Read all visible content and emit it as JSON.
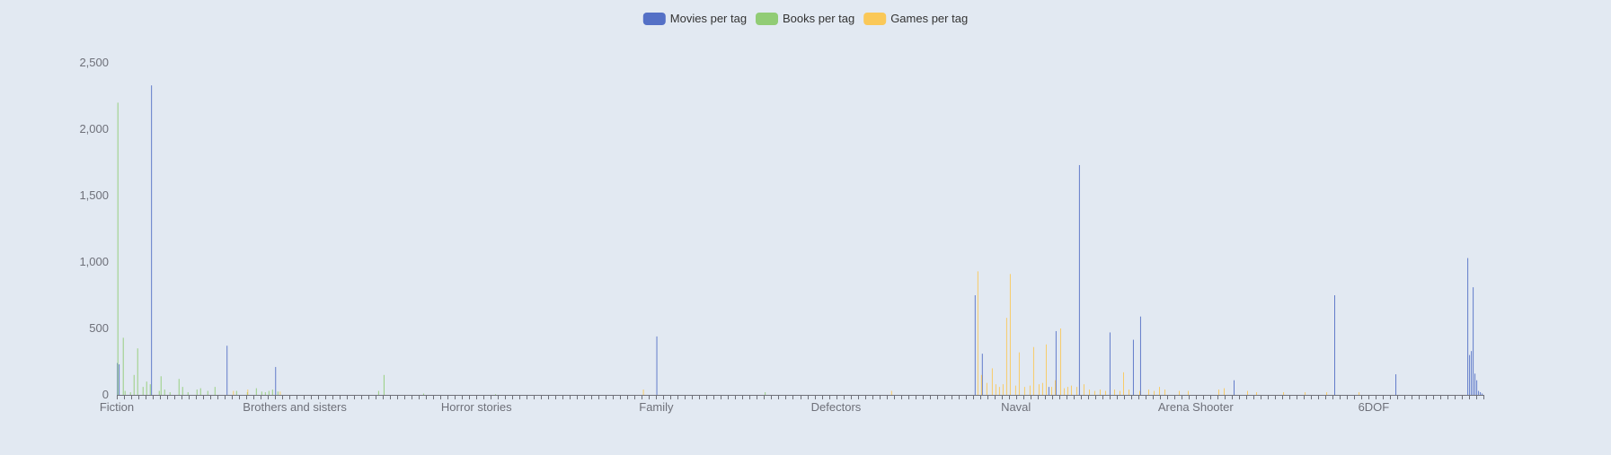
{
  "chart_data": {
    "type": "bar",
    "title": "",
    "xlabel": "",
    "ylabel": "",
    "ylim": [
      0,
      2500
    ],
    "yticks": [
      0,
      500,
      1000,
      1500,
      2000,
      2500
    ],
    "ytick_labels": [
      "0",
      "500",
      "1,000",
      "1,500",
      "2,000",
      "2,500"
    ],
    "grid": false,
    "legend_position": "top-center",
    "category_count": 760,
    "x_tick_labels": [
      {
        "index": 0,
        "label": "Fiction"
      },
      {
        "index": 99,
        "label": "Brothers and sisters"
      },
      {
        "index": 200,
        "label": "Horror stories"
      },
      {
        "index": 300,
        "label": "Family"
      },
      {
        "index": 400,
        "label": "Defectors"
      },
      {
        "index": 500,
        "label": "Naval"
      },
      {
        "index": 600,
        "label": "Arena Shooter"
      },
      {
        "index": 699,
        "label": "6DOF"
      }
    ],
    "series": [
      {
        "name": "Movies per tag",
        "color": "#5470c6",
        "points": [
          [
            0,
            240
          ],
          [
            1,
            230
          ],
          [
            19,
            2330
          ],
          [
            61,
            370
          ],
          [
            88,
            210
          ],
          [
            300,
            440
          ],
          [
            477,
            750
          ],
          [
            481,
            310
          ],
          [
            518,
            60
          ],
          [
            522,
            480
          ],
          [
            535,
            1730
          ],
          [
            552,
            470
          ],
          [
            565,
            415
          ],
          [
            569,
            590
          ],
          [
            621,
            110
          ],
          [
            677,
            750
          ],
          [
            711,
            155
          ],
          [
            751,
            1030
          ],
          [
            752,
            300
          ],
          [
            753,
            330
          ],
          [
            754,
            810
          ],
          [
            755,
            160
          ],
          [
            756,
            110
          ],
          [
            757,
            30
          ],
          [
            758,
            20
          ],
          [
            759,
            10
          ]
        ]
      },
      {
        "name": "Books per tag",
        "color": "#91cc75",
        "points": [
          [
            0,
            2200
          ],
          [
            3,
            430
          ],
          [
            4,
            30
          ],
          [
            7,
            20
          ],
          [
            9,
            150
          ],
          [
            11,
            350
          ],
          [
            14,
            60
          ],
          [
            16,
            100
          ],
          [
            18,
            80
          ],
          [
            23,
            30
          ],
          [
            24,
            140
          ],
          [
            26,
            40
          ],
          [
            29,
            20
          ],
          [
            34,
            120
          ],
          [
            36,
            60
          ],
          [
            39,
            20
          ],
          [
            44,
            40
          ],
          [
            46,
            50
          ],
          [
            50,
            30
          ],
          [
            54,
            60
          ],
          [
            66,
            30
          ],
          [
            72,
            20
          ],
          [
            77,
            50
          ],
          [
            80,
            25
          ],
          [
            82,
            20
          ],
          [
            84,
            30
          ],
          [
            86,
            40
          ],
          [
            89,
            25
          ],
          [
            145,
            30
          ],
          [
            148,
            150
          ],
          [
            170,
            10
          ],
          [
            210,
            5
          ],
          [
            360,
            20
          ]
        ]
      },
      {
        "name": "Games per tag",
        "color": "#fac858",
        "points": [
          [
            64,
            30
          ],
          [
            72,
            40
          ],
          [
            90,
            25
          ],
          [
            292,
            40
          ],
          [
            430,
            30
          ],
          [
            478,
            930
          ],
          [
            480,
            150
          ],
          [
            483,
            90
          ],
          [
            486,
            200
          ],
          [
            488,
            80
          ],
          [
            490,
            60
          ],
          [
            492,
            80
          ],
          [
            494,
            580
          ],
          [
            496,
            910
          ],
          [
            499,
            70
          ],
          [
            501,
            320
          ],
          [
            504,
            60
          ],
          [
            507,
            70
          ],
          [
            509,
            360
          ],
          [
            512,
            80
          ],
          [
            514,
            90
          ],
          [
            516,
            380
          ],
          [
            519,
            60
          ],
          [
            521,
            110
          ],
          [
            524,
            500
          ],
          [
            526,
            50
          ],
          [
            528,
            60
          ],
          [
            530,
            70
          ],
          [
            533,
            60
          ],
          [
            537,
            80
          ],
          [
            540,
            40
          ],
          [
            543,
            30
          ],
          [
            546,
            40
          ],
          [
            549,
            30
          ],
          [
            554,
            40
          ],
          [
            557,
            30
          ],
          [
            559,
            170
          ],
          [
            562,
            40
          ],
          [
            568,
            30
          ],
          [
            573,
            40
          ],
          [
            576,
            30
          ],
          [
            579,
            60
          ],
          [
            582,
            40
          ],
          [
            590,
            30
          ],
          [
            595,
            30
          ],
          [
            612,
            40
          ],
          [
            615,
            50
          ],
          [
            628,
            30
          ],
          [
            633,
            20
          ],
          [
            648,
            20
          ],
          [
            660,
            20
          ],
          [
            672,
            20
          ],
          [
            690,
            20
          ]
        ]
      }
    ]
  }
}
